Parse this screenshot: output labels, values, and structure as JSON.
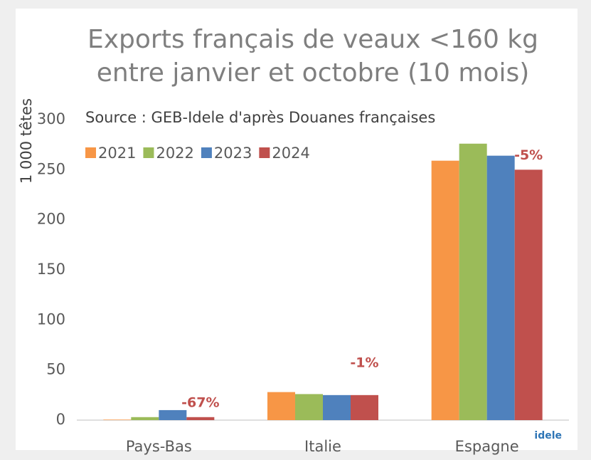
{
  "chart_data": {
    "type": "bar",
    "title": [
      "Exports français de veaux <160 kg",
      "entre janvier et octobre (10 mois)"
    ],
    "subtitle": "Source : GEB-Idele d'après Douanes françaises",
    "y_label": "1 000 têtes",
    "categories": [
      "Pays-Bas",
      "Italie",
      "Espagne"
    ],
    "series": [
      {
        "name": "2021",
        "color": "#f79646",
        "values": [
          0.5,
          28,
          259
        ]
      },
      {
        "name": "2022",
        "color": "#9bbb59",
        "values": [
          3,
          26,
          276
        ]
      },
      {
        "name": "2023",
        "color": "#4f81bd",
        "values": [
          10,
          25,
          264
        ]
      },
      {
        "name": "2024",
        "color": "#c0504d",
        "values": [
          3,
          25,
          250
        ]
      }
    ],
    "annotations": [
      "-67%",
      "-1%",
      "-5%"
    ],
    "ylim": [
      0,
      300
    ],
    "yticks": [
      0,
      50,
      100,
      150,
      200,
      250,
      300
    ],
    "grid": false,
    "legend": "top-left",
    "logo": "idele"
  }
}
